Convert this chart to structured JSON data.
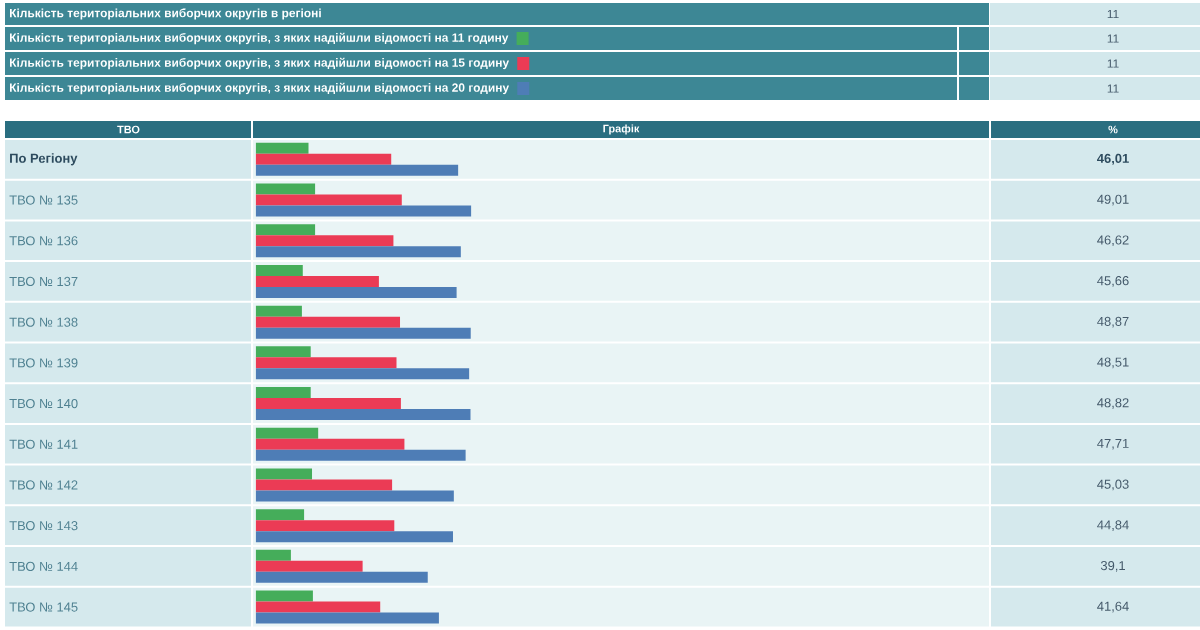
{
  "chart_data": {
    "type": "bar",
    "orientation": "horizontal",
    "ylabel": "ТВО",
    "categories": [
      "По Регіону",
      "ТВО № 135",
      "ТВО № 136",
      "ТВО № 137",
      "ТВО № 138",
      "ТВО № 139",
      "ТВО № 140",
      "ТВО № 141",
      "ТВО № 142",
      "ТВО № 143",
      "ТВО № 144",
      "ТВО № 145"
    ],
    "series": [
      {
        "name": "Кількість територіальних виборчих округів, з яких надійшли відомості на 11 годину",
        "color": "#45ad5a",
        "values": [
          12.0,
          13.5,
          13.5,
          10.7,
          10.5,
          12.5,
          12.5,
          14.2,
          12.8,
          11.0,
          8.0,
          13.0
        ]
      },
      {
        "name": "Кількість територіальних виборчих округів, з яких надійшли відомості на 15 годину",
        "color": "#eb3b55",
        "values": [
          30.8,
          33.2,
          31.3,
          28.0,
          32.8,
          32.0,
          33.0,
          33.8,
          31.0,
          31.5,
          24.3,
          28.3
        ]
      },
      {
        "name": "Кількість територіальних виборчих округів, з яких надійшли відомості на 20 годину",
        "color": "#4e7db6",
        "values": [
          46.01,
          49.01,
          46.62,
          45.66,
          48.87,
          48.51,
          48.82,
          47.71,
          45.03,
          44.84,
          39.1,
          41.64
        ],
        "value_labels": [
          "46,01",
          "49,01",
          "46,62",
          "45,66",
          "48,87",
          "48,51",
          "48,82",
          "47,71",
          "45,03",
          "44,84",
          "39,1",
          "41,64"
        ]
      }
    ],
    "legend": "top",
    "tick_labels": "y",
    "annotations": [
      "Кількість територіальних виборчих округів в регіоні",
      "11",
      "11",
      "11",
      "11",
      "Графік",
      "%"
    ]
  }
}
